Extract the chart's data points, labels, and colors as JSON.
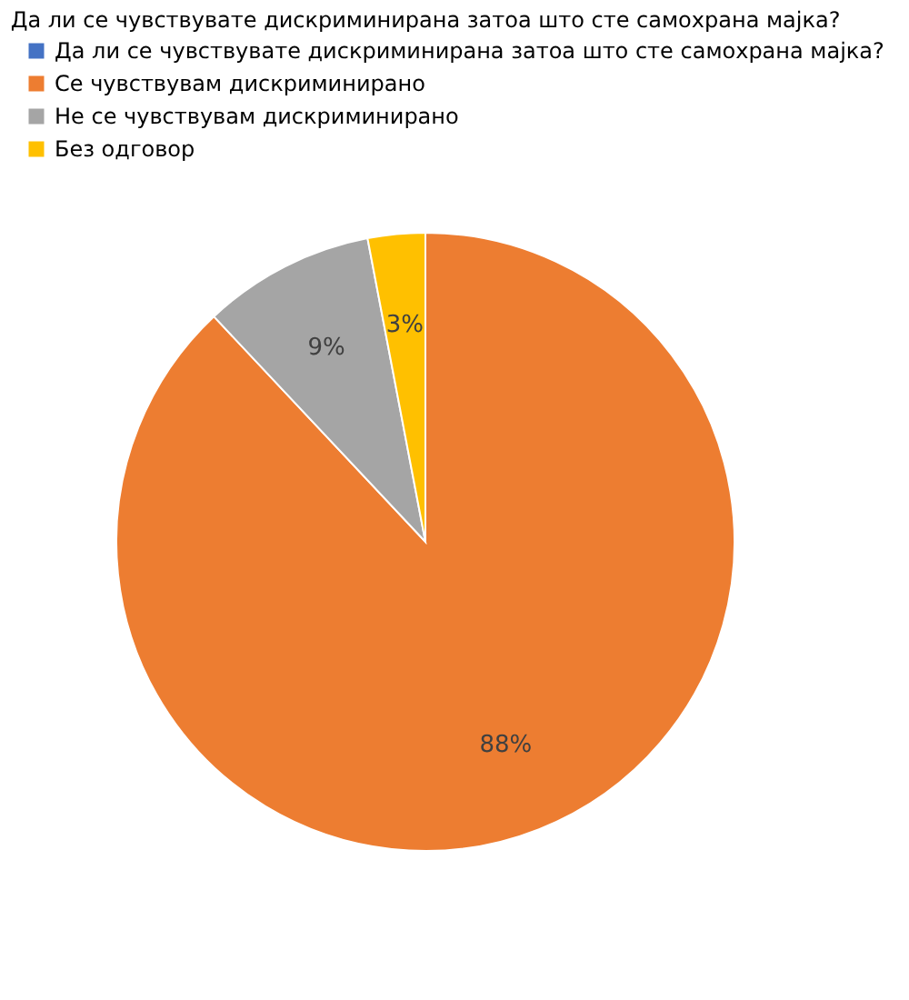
{
  "chart_data": {
    "type": "pie",
    "title": "Да ли се чувствувате дискриминирана затоа што сте самохрана мајка?",
    "categories": [
      "Да ли се чувствувате дискриминирана затоа што сте самохрана мајка?",
      "Се чувствувам дискриминирано",
      "Не се чувствувам дискриминирано",
      "Без одговор"
    ],
    "values": [
      0,
      88,
      9,
      3
    ],
    "colors": [
      "#4472c4",
      "#ed7d31",
      "#a5a5a5",
      "#ffc000"
    ],
    "value_labels": [
      null,
      "88%",
      "9%",
      "3%"
    ],
    "legend": "top left"
  }
}
